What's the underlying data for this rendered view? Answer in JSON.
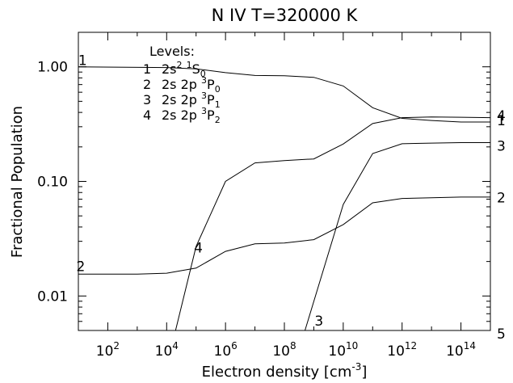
{
  "chart_data": {
    "type": "line",
    "title": "N IV T=320000 K",
    "xlabel": "Electron density [cm",
    "xlabel_sup": "-3",
    "xlabel_end": "]",
    "ylabel": "Fractional Population",
    "x_scale": "log",
    "y_scale": "log",
    "xlim": [
      10,
      1000000000000000.0
    ],
    "ylim": [
      0.005,
      2.0
    ],
    "x_ticks": [
      {
        "value": 100.0,
        "base": "10",
        "exp": "2"
      },
      {
        "value": 10000.0,
        "base": "10",
        "exp": "4"
      },
      {
        "value": 1000000.0,
        "base": "10",
        "exp": "6"
      },
      {
        "value": 100000000.0,
        "base": "10",
        "exp": "8"
      },
      {
        "value": 10000000000.0,
        "base": "10",
        "exp": "10"
      },
      {
        "value": 1000000000000.0,
        "base": "10",
        "exp": "12"
      },
      {
        "value": 100000000000000.0,
        "base": "10",
        "exp": "14"
      }
    ],
    "y_ticks": [
      {
        "value": 0.01,
        "label": "0.01"
      },
      {
        "value": 0.1,
        "label": "0.10"
      },
      {
        "value": 1.0,
        "label": "1.00"
      }
    ],
    "legend": {
      "title": "Levels:",
      "entries": [
        {
          "num": "1",
          "a": "2s",
          "a_sup": "2",
          "b": "",
          "term_sup": "1",
          "term": "S",
          "term_sub": "0"
        },
        {
          "num": "2",
          "a": "2s",
          "a_sup": "",
          "b": "2p",
          "term_sup": "3",
          "term": "P",
          "term_sub": "0"
        },
        {
          "num": "3",
          "a": "2s",
          "a_sup": "",
          "b": "2p",
          "term_sup": "3",
          "term": "P",
          "term_sub": "1"
        },
        {
          "num": "4",
          "a": "2s",
          "a_sup": "",
          "b": "2p",
          "term_sup": "3",
          "term": "P",
          "term_sub": "2"
        }
      ]
    },
    "series": [
      {
        "label": "1",
        "points": [
          [
            10,
            1.0
          ],
          [
            10000.0,
            0.985
          ],
          [
            100000.0,
            0.96
          ],
          [
            1000000.0,
            0.89
          ],
          [
            10000000.0,
            0.84
          ],
          [
            100000000.0,
            0.835
          ],
          [
            1000000000.0,
            0.81
          ],
          [
            10000000000.0,
            0.68
          ],
          [
            100000000000.0,
            0.44
          ],
          [
            1000000000000.0,
            0.355
          ],
          [
            10000000000000.0,
            0.34
          ],
          [
            100000000000000.0,
            0.33
          ],
          [
            1000000000000000.0,
            0.33
          ]
        ]
      },
      {
        "label": "2",
        "points": [
          [
            10,
            0.0155
          ],
          [
            1000.0,
            0.0155
          ],
          [
            10000.0,
            0.0158
          ],
          [
            100000.0,
            0.0175
          ],
          [
            1000000.0,
            0.0245
          ],
          [
            10000000.0,
            0.0285
          ],
          [
            100000000.0,
            0.029
          ],
          [
            1000000000.0,
            0.031
          ],
          [
            10000000000.0,
            0.042
          ],
          [
            100000000000.0,
            0.065
          ],
          [
            1000000000000.0,
            0.071
          ],
          [
            10000000000000.0,
            0.072
          ],
          [
            100000000000000.0,
            0.073
          ],
          [
            1000000000000000.0,
            0.073
          ]
        ]
      },
      {
        "label": "3",
        "points": [
          [
            500000000.0,
            0.005
          ],
          [
            10000000000.0,
            0.063
          ],
          [
            100000000000.0,
            0.175
          ],
          [
            1000000000000.0,
            0.213
          ],
          [
            10000000000000.0,
            0.216
          ],
          [
            100000000000000.0,
            0.218
          ],
          [
            1000000000000000.0,
            0.218
          ]
        ]
      },
      {
        "label": "4",
        "points": [
          [
            20000.0,
            0.005
          ],
          [
            100000.0,
            0.027
          ],
          [
            1000000.0,
            0.1
          ],
          [
            10000000.0,
            0.145
          ],
          [
            100000000.0,
            0.152
          ],
          [
            1000000000.0,
            0.157
          ],
          [
            10000000000.0,
            0.212
          ],
          [
            100000000000.0,
            0.32
          ],
          [
            1000000000000.0,
            0.36
          ],
          [
            10000000000000.0,
            0.365
          ],
          [
            100000000000000.0,
            0.363
          ],
          [
            1000000000000000.0,
            0.36
          ]
        ]
      }
    ],
    "curve_labels": [
      {
        "text": "1",
        "x": 14,
        "y": 1.04
      },
      {
        "text": "2",
        "x": 12,
        "y": 0.0165
      },
      {
        "text": "4",
        "x": 120000.0,
        "y": 0.024
      },
      {
        "text": "3",
        "x": 1500000000.0,
        "y": 0.0055
      }
    ],
    "right_labels": [
      {
        "text": "4",
        "y": 0.375
      },
      {
        "text": "1",
        "y": 0.34
      },
      {
        "text": "3",
        "y": 0.205
      },
      {
        "text": "2",
        "y": 0.072
      },
      {
        "text": "5",
        "y": 0.0047
      }
    ]
  }
}
